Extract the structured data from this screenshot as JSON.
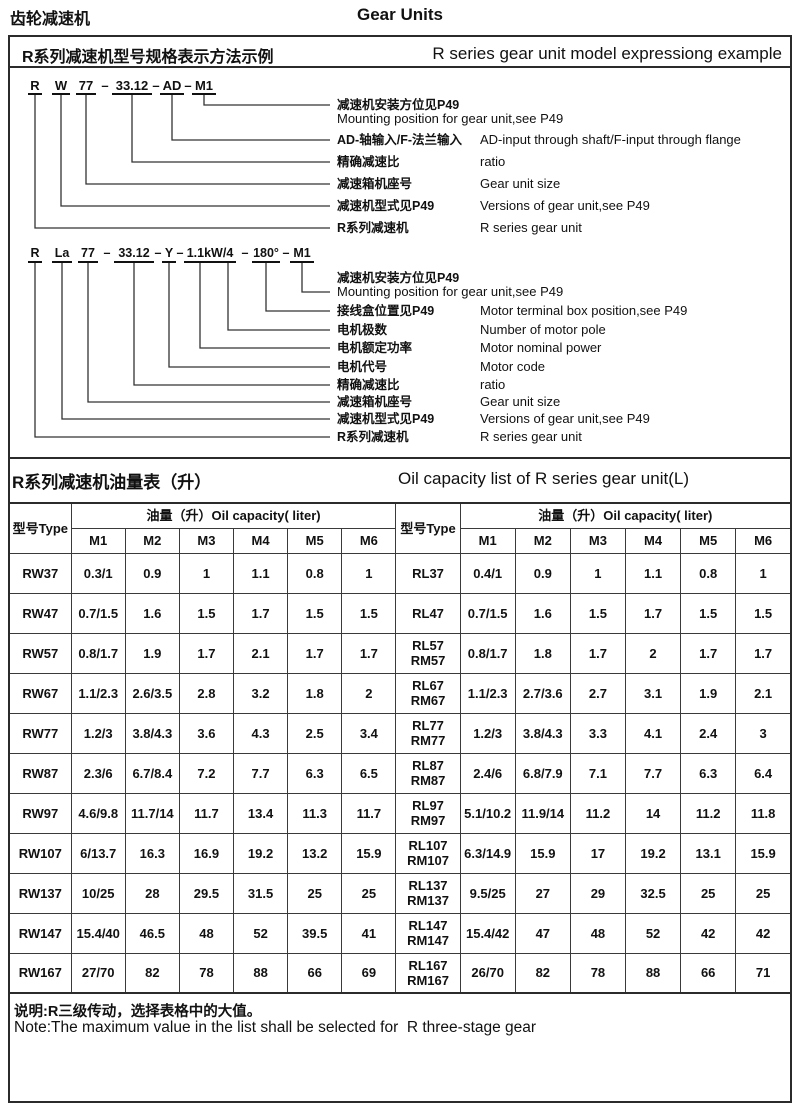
{
  "page": {
    "header_cn": "齿轮减速机",
    "header_en": "Gear Units"
  },
  "section1": {
    "title_cn": "R系列减速机型号规格表示方法示例",
    "title_en": "R series gear unit model expressiong example",
    "model1": {
      "parts": [
        "R",
        "W",
        "77",
        "–",
        "33.12",
        "–",
        "AD",
        "–",
        "M1"
      ],
      "labels": [
        {
          "cn": "减速机安装方位见P49",
          "en": "Mounting position for gear unit,see P49"
        },
        {
          "cn": "AD-轴输入/F-法兰输入",
          "en": "AD-input through shaft/F-input through flange"
        },
        {
          "cn": "精确减速比",
          "en": "ratio"
        },
        {
          "cn": "减速箱机座号",
          "en": "Gear unit size"
        },
        {
          "cn": "减速机型式见P49",
          "en": "Versions of gear unit,see P49"
        },
        {
          "cn": "R系列减速机",
          "en": "R series gear unit"
        }
      ]
    },
    "model2": {
      "parts": [
        "R",
        "La",
        "77",
        "–",
        "33.12",
        "–",
        "Y",
        "–",
        "1.1kW/4",
        "–",
        "180°",
        "–",
        "M1"
      ],
      "labels": [
        {
          "cn": "减速机安装方位见P49",
          "en": "Mounting position for gear unit,see P49"
        },
        {
          "cn": "接线盒位置见P49",
          "en": "Motor terminal box position,see P49"
        },
        {
          "cn": "电机极数",
          "en": "Number of motor pole"
        },
        {
          "cn": "电机额定功率",
          "en": "Motor nominal power"
        },
        {
          "cn": "电机代号",
          "en": "Motor code"
        },
        {
          "cn": "精确减速比",
          "en": "ratio"
        },
        {
          "cn": "减速箱机座号",
          "en": "Gear unit size"
        },
        {
          "cn": "减速机型式见P49",
          "en": "Versions of gear unit,see P49"
        },
        {
          "cn": "R系列减速机",
          "en": "R series gear unit"
        }
      ]
    }
  },
  "section2": {
    "title_cn": "R系列减速机油量表（升）",
    "title_en": "Oil capacity list of R series gear unit(L)",
    "table": {
      "type_header": "型号Type",
      "capacity_header": "油量（升）Oil capacity( liter)",
      "m_headers": [
        "M1",
        "M2",
        "M3",
        "M4",
        "M5",
        "M6"
      ],
      "left_rows": [
        {
          "type": "RW37",
          "values": [
            "0.3/1",
            "0.9",
            "1",
            "1.1",
            "0.8",
            "1"
          ]
        },
        {
          "type": "RW47",
          "values": [
            "0.7/1.5",
            "1.6",
            "1.5",
            "1.7",
            "1.5",
            "1.5"
          ]
        },
        {
          "type": "RW57",
          "values": [
            "0.8/1.7",
            "1.9",
            "1.7",
            "2.1",
            "1.7",
            "1.7"
          ]
        },
        {
          "type": "RW67",
          "values": [
            "1.1/2.3",
            "2.6/3.5",
            "2.8",
            "3.2",
            "1.8",
            "2"
          ]
        },
        {
          "type": "RW77",
          "values": [
            "1.2/3",
            "3.8/4.3",
            "3.6",
            "4.3",
            "2.5",
            "3.4"
          ]
        },
        {
          "type": "RW87",
          "values": [
            "2.3/6",
            "6.7/8.4",
            "7.2",
            "7.7",
            "6.3",
            "6.5"
          ]
        },
        {
          "type": "RW97",
          "values": [
            "4.6/9.8",
            "11.7/14",
            "11.7",
            "13.4",
            "11.3",
            "11.7"
          ]
        },
        {
          "type": "RW107",
          "values": [
            "6/13.7",
            "16.3",
            "16.9",
            "19.2",
            "13.2",
            "15.9"
          ]
        },
        {
          "type": "RW137",
          "values": [
            "10/25",
            "28",
            "29.5",
            "31.5",
            "25",
            "25"
          ]
        },
        {
          "type": "RW147",
          "values": [
            "15.4/40",
            "46.5",
            "48",
            "52",
            "39.5",
            "41"
          ]
        },
        {
          "type": "RW167",
          "values": [
            "27/70",
            "82",
            "78",
            "88",
            "66",
            "69"
          ]
        }
      ],
      "right_rows": [
        {
          "type": [
            "RL37"
          ],
          "values": [
            "0.4/1",
            "0.9",
            "1",
            "1.1",
            "0.8",
            "1"
          ]
        },
        {
          "type": [
            "RL47"
          ],
          "values": [
            "0.7/1.5",
            "1.6",
            "1.5",
            "1.7",
            "1.5",
            "1.5"
          ]
        },
        {
          "type": [
            "RL57",
            "RM57"
          ],
          "values": [
            "0.8/1.7",
            "1.8",
            "1.7",
            "2",
            "1.7",
            "1.7"
          ]
        },
        {
          "type": [
            "RL67",
            "RM67"
          ],
          "values": [
            "1.1/2.3",
            "2.7/3.6",
            "2.7",
            "3.1",
            "1.9",
            "2.1"
          ]
        },
        {
          "type": [
            "RL77",
            "RM77"
          ],
          "values": [
            "1.2/3",
            "3.8/4.3",
            "3.3",
            "4.1",
            "2.4",
            "3"
          ]
        },
        {
          "type": [
            "RL87",
            "RM87"
          ],
          "values": [
            "2.4/6",
            "6.8/7.9",
            "7.1",
            "7.7",
            "6.3",
            "6.4"
          ]
        },
        {
          "type": [
            "RL97",
            "RM97"
          ],
          "values": [
            "5.1/10.2",
            "11.9/14",
            "11.2",
            "14",
            "11.2",
            "11.8"
          ]
        },
        {
          "type": [
            "RL107",
            "RM107"
          ],
          "values": [
            "6.3/14.9",
            "15.9",
            "17",
            "19.2",
            "13.1",
            "15.9"
          ]
        },
        {
          "type": [
            "RL137",
            "RM137"
          ],
          "values": [
            "9.5/25",
            "27",
            "29",
            "32.5",
            "25",
            "25"
          ]
        },
        {
          "type": [
            "RL147",
            "RM147"
          ],
          "values": [
            "15.4/42",
            "47",
            "48",
            "52",
            "42",
            "42"
          ]
        },
        {
          "type": [
            "RL167",
            "RM167"
          ],
          "values": [
            "26/70",
            "82",
            "78",
            "88",
            "66",
            "71"
          ]
        }
      ]
    }
  },
  "note": {
    "cn": "说明:R三级传动，选择表格中的大值。",
    "en": "Note:The maximum value in the list shall be selected for  R three-stage gear"
  }
}
